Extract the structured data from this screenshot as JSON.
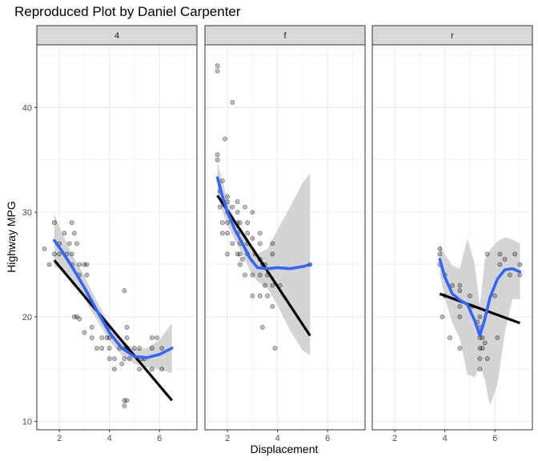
{
  "chart_data": {
    "type": "scatter",
    "title": "Reproduced Plot by Daniel Carpenter",
    "xlabel": "Displacement",
    "ylabel": "Highway MPG",
    "xlim": [
      1.1,
      7.5
    ],
    "ylim": [
      9.2,
      46.0
    ],
    "x_ticks": [
      2,
      4,
      6
    ],
    "y_ticks": [
      10,
      20,
      30,
      40
    ],
    "grid": true,
    "colors": {
      "points": "#000000",
      "lm_line": "#000000",
      "loess_line": "#3366ff",
      "band": "#cccccc",
      "strip_bg": "#d9d9d9",
      "grid": "#ebebeb"
    },
    "facets": [
      {
        "label": "4",
        "points": [
          [
            1.8,
            26
          ],
          [
            1.8,
            29
          ],
          [
            2.0,
            27
          ],
          [
            2.0,
            26
          ],
          [
            2.2,
            28
          ],
          [
            2.4,
            27
          ],
          [
            2.5,
            29
          ],
          [
            2.5,
            26
          ],
          [
            2.5,
            25
          ],
          [
            2.7,
            27
          ],
          [
            2.8,
            25
          ],
          [
            2.8,
            24
          ],
          [
            3.0,
            25
          ],
          [
            3.1,
            25
          ],
          [
            2.6,
            20
          ],
          [
            2.7,
            20
          ],
          [
            2.8,
            19.8
          ],
          [
            3.7,
            17
          ],
          [
            3.7,
            18
          ],
          [
            4.0,
            17
          ],
          [
            4.0,
            19
          ],
          [
            4.0,
            16
          ],
          [
            4.6,
            17
          ],
          [
            4.6,
            16
          ],
          [
            4.7,
            17
          ],
          [
            4.7,
            19
          ],
          [
            4.7,
            18
          ],
          [
            4.7,
            17
          ],
          [
            5.2,
            17
          ],
          [
            5.2,
            15
          ],
          [
            5.7,
            17
          ],
          [
            5.7,
            18
          ],
          [
            5.9,
            18
          ],
          [
            6.1,
            17
          ],
          [
            4.2,
            16
          ],
          [
            4.4,
            17
          ],
          [
            3.3,
            18
          ],
          [
            3.5,
            17
          ],
          [
            3.9,
            18
          ],
          [
            4.0,
            18
          ],
          [
            4.2,
            15
          ],
          [
            4.6,
            12
          ],
          [
            4.7,
            12
          ],
          [
            4.6,
            11.5
          ],
          [
            4.8,
            16
          ],
          [
            5.0,
            17
          ],
          [
            5.3,
            16
          ],
          [
            5.4,
            16
          ],
          [
            6.1,
            15
          ],
          [
            4.5,
            15.5
          ],
          [
            4.6,
            22.5
          ],
          [
            3.0,
            18.5
          ],
          [
            3.3,
            19
          ],
          [
            5.7,
            15
          ],
          [
            1.4,
            26.5
          ],
          [
            3.1,
            24
          ],
          [
            1.6,
            25
          ],
          [
            2.3,
            26
          ],
          [
            2.6,
            28
          ]
        ],
        "lm": [
          [
            1.8,
            25.4
          ],
          [
            6.5,
            12.0
          ]
        ],
        "loess": [
          [
            1.8,
            27.3
          ],
          [
            2.1,
            26.3
          ],
          [
            2.5,
            24.8
          ],
          [
            3.0,
            22.8
          ],
          [
            3.5,
            20.6
          ],
          [
            4.0,
            18.5
          ],
          [
            4.5,
            17.0
          ],
          [
            5.0,
            16.2
          ],
          [
            5.5,
            16.1
          ],
          [
            6.0,
            16.4
          ],
          [
            6.5,
            17.0
          ]
        ],
        "band_upper": [
          [
            1.8,
            29.8
          ],
          [
            2.1,
            28.1
          ],
          [
            2.5,
            26.0
          ],
          [
            3.0,
            23.9
          ],
          [
            3.5,
            21.5
          ],
          [
            4.0,
            19.3
          ],
          [
            4.5,
            17.7
          ],
          [
            5.0,
            16.9
          ],
          [
            5.5,
            17.0
          ],
          [
            6.0,
            17.8
          ],
          [
            6.5,
            19.4
          ]
        ],
        "band_lower": [
          [
            1.8,
            24.8
          ],
          [
            2.1,
            24.5
          ],
          [
            2.5,
            23.6
          ],
          [
            3.0,
            21.7
          ],
          [
            3.5,
            19.7
          ],
          [
            4.0,
            17.7
          ],
          [
            4.5,
            16.3
          ],
          [
            5.0,
            15.5
          ],
          [
            5.5,
            15.2
          ],
          [
            6.0,
            15.0
          ],
          [
            6.5,
            14.6
          ]
        ]
      },
      {
        "label": "f",
        "points": [
          [
            1.6,
            44
          ],
          [
            1.6,
            43.5
          ],
          [
            1.6,
            35
          ],
          [
            1.6,
            35.5
          ],
          [
            1.7,
            32
          ],
          [
            1.7,
            30.5
          ],
          [
            1.8,
            28
          ],
          [
            1.8,
            29
          ],
          [
            1.8,
            31
          ],
          [
            1.8,
            33
          ],
          [
            1.9,
            37
          ],
          [
            2.0,
            29
          ],
          [
            2.0,
            30
          ],
          [
            2.0,
            31
          ],
          [
            2.0,
            26
          ],
          [
            2.0,
            28
          ],
          [
            2.2,
            40.5
          ],
          [
            2.2,
            27
          ],
          [
            2.4,
            30
          ],
          [
            2.4,
            28
          ],
          [
            2.4,
            31
          ],
          [
            2.4,
            29
          ],
          [
            2.5,
            29
          ],
          [
            2.5,
            27
          ],
          [
            2.5,
            26
          ],
          [
            2.5,
            25
          ],
          [
            2.8,
            26
          ],
          [
            2.8,
            28
          ],
          [
            2.8,
            29
          ],
          [
            2.8,
            27
          ],
          [
            3.0,
            30
          ],
          [
            3.0,
            24
          ],
          [
            3.1,
            26
          ],
          [
            3.3,
            28
          ],
          [
            3.3,
            27
          ],
          [
            3.3,
            24
          ],
          [
            3.3,
            22
          ],
          [
            3.4,
            25
          ],
          [
            3.5,
            25
          ],
          [
            3.5,
            23
          ],
          [
            3.6,
            24
          ],
          [
            3.8,
            26
          ],
          [
            3.8,
            23
          ],
          [
            3.8,
            21
          ],
          [
            3.9,
            17
          ],
          [
            3.4,
            19
          ],
          [
            3.0,
            22
          ],
          [
            2.7,
            24
          ],
          [
            2.4,
            26
          ],
          [
            2.6,
            25.5
          ],
          [
            3.0,
            27.5
          ],
          [
            2.2,
            30.5
          ],
          [
            2.0,
            31.5
          ],
          [
            3.6,
            22
          ],
          [
            3.8,
            27
          ],
          [
            3.3,
            25.5
          ],
          [
            2.7,
            30.5
          ],
          [
            4.1,
            23
          ],
          [
            5.3,
            25
          ]
        ],
        "lm": [
          [
            1.6,
            31.6
          ],
          [
            5.3,
            18.2
          ]
        ],
        "loess": [
          [
            1.6,
            33.3
          ],
          [
            1.8,
            31.5
          ],
          [
            2.0,
            30.0
          ],
          [
            2.3,
            28.3
          ],
          [
            2.6,
            27.0
          ],
          [
            2.9,
            25.6
          ],
          [
            3.2,
            24.7
          ],
          [
            3.6,
            24.6
          ],
          [
            4.0,
            24.7
          ],
          [
            4.5,
            24.6
          ],
          [
            5.0,
            24.8
          ],
          [
            5.3,
            25.0
          ]
        ],
        "band_upper": [
          [
            1.6,
            34.8
          ],
          [
            1.8,
            32.9
          ],
          [
            2.0,
            31.2
          ],
          [
            2.3,
            29.3
          ],
          [
            2.6,
            28.0
          ],
          [
            2.9,
            26.8
          ],
          [
            3.2,
            26.0
          ],
          [
            3.6,
            26.5
          ],
          [
            4.0,
            28.3
          ],
          [
            4.5,
            30.5
          ],
          [
            5.0,
            32.8
          ],
          [
            5.3,
            33.7
          ]
        ],
        "band_lower": [
          [
            1.6,
            31.8
          ],
          [
            1.8,
            30.0
          ],
          [
            2.0,
            28.8
          ],
          [
            2.3,
            27.3
          ],
          [
            2.6,
            26.0
          ],
          [
            2.9,
            24.4
          ],
          [
            3.2,
            23.4
          ],
          [
            3.6,
            22.7
          ],
          [
            4.0,
            21.1
          ],
          [
            4.5,
            18.7
          ],
          [
            5.0,
            16.8
          ],
          [
            5.3,
            16.3
          ]
        ]
      },
      {
        "label": "r",
        "points": [
          [
            3.8,
            26
          ],
          [
            3.8,
            25
          ],
          [
            3.8,
            26.5
          ],
          [
            4.0,
            24
          ],
          [
            4.0,
            22
          ],
          [
            4.3,
            23
          ],
          [
            4.6,
            20
          ],
          [
            4.6,
            21
          ],
          [
            4.6,
            23
          ],
          [
            4.6,
            17
          ],
          [
            5.0,
            22
          ],
          [
            5.4,
            18
          ],
          [
            5.4,
            17
          ],
          [
            5.4,
            16
          ],
          [
            5.4,
            15
          ],
          [
            5.4,
            19
          ],
          [
            5.5,
            18
          ],
          [
            5.7,
            26
          ],
          [
            5.7,
            16
          ],
          [
            6.0,
            22
          ],
          [
            6.2,
            26
          ],
          [
            6.2,
            25
          ],
          [
            6.6,
            24
          ],
          [
            6.8,
            26
          ],
          [
            7.0,
            24
          ],
          [
            4.6,
            22.5
          ],
          [
            5.3,
            19.5
          ],
          [
            5.5,
            17
          ],
          [
            6.1,
            18
          ],
          [
            3.9,
            20
          ],
          [
            4.2,
            18
          ],
          [
            5.6,
            17.5
          ],
          [
            6.4,
            25.5
          ],
          [
            7.0,
            25
          ],
          [
            5.4,
            20
          ],
          [
            5.1,
            21
          ]
        ],
        "lm": [
          [
            3.8,
            22.2
          ],
          [
            7.0,
            19.4
          ]
        ],
        "loess": [
          [
            3.8,
            25.5
          ],
          [
            4.0,
            23.8
          ],
          [
            4.3,
            22.2
          ],
          [
            4.6,
            21.6
          ],
          [
            4.9,
            21.2
          ],
          [
            5.2,
            19.6
          ],
          [
            5.4,
            18.2
          ],
          [
            5.6,
            19.8
          ],
          [
            5.8,
            21.8
          ],
          [
            6.1,
            23.6
          ],
          [
            6.4,
            24.5
          ],
          [
            6.7,
            24.6
          ],
          [
            7.0,
            24.3
          ]
        ],
        "band_upper": [
          [
            3.8,
            26.9
          ],
          [
            4.0,
            26.0
          ],
          [
            4.3,
            24.9
          ],
          [
            4.6,
            24.6
          ],
          [
            4.9,
            27.5
          ],
          [
            5.2,
            25.0
          ],
          [
            5.4,
            21.0
          ],
          [
            5.6,
            25.5
          ],
          [
            5.8,
            26.4
          ],
          [
            6.1,
            27.2
          ],
          [
            6.4,
            27.6
          ],
          [
            6.7,
            27.4
          ],
          [
            7.0,
            27.0
          ]
        ],
        "band_lower": [
          [
            3.8,
            24.1
          ],
          [
            4.0,
            21.8
          ],
          [
            4.3,
            19.4
          ],
          [
            4.6,
            17.9
          ],
          [
            4.9,
            14.5
          ],
          [
            5.2,
            14.2
          ],
          [
            5.4,
            15.3
          ],
          [
            5.6,
            14.0
          ],
          [
            5.8,
            11.5
          ],
          [
            6.1,
            13.5
          ],
          [
            6.4,
            18.5
          ],
          [
            6.7,
            21.7
          ],
          [
            7.0,
            21.7
          ]
        ]
      }
    ]
  }
}
